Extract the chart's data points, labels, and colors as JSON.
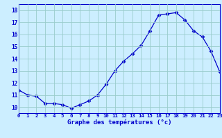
{
  "x": [
    0,
    1,
    2,
    3,
    4,
    5,
    6,
    7,
    8,
    9,
    10,
    11,
    12,
    13,
    14,
    15,
    16,
    17,
    18,
    19,
    20,
    21,
    22,
    23
  ],
  "y": [
    11.4,
    11.0,
    10.9,
    10.3,
    10.3,
    10.2,
    9.9,
    10.2,
    10.5,
    11.0,
    11.9,
    13.0,
    13.8,
    14.4,
    15.1,
    16.3,
    17.6,
    17.7,
    17.8,
    17.2,
    16.3,
    15.8,
    14.6,
    12.9
  ],
  "xlim": [
    0,
    23
  ],
  "ylim": [
    9.5,
    18.5
  ],
  "yticks": [
    10,
    11,
    12,
    13,
    14,
    15,
    16,
    17,
    18
  ],
  "xticks": [
    0,
    1,
    2,
    3,
    4,
    5,
    6,
    7,
    8,
    9,
    10,
    11,
    12,
    13,
    14,
    15,
    16,
    17,
    18,
    19,
    20,
    21,
    22,
    23
  ],
  "xlabel": "Graphe des températures (°c)",
  "line_color": "#0000cc",
  "marker": "D",
  "marker_size": 2.5,
  "bg_color": "#cceeff",
  "grid_color": "#99cccc",
  "axis_label_color": "#0000cc",
  "tick_color": "#0000cc"
}
